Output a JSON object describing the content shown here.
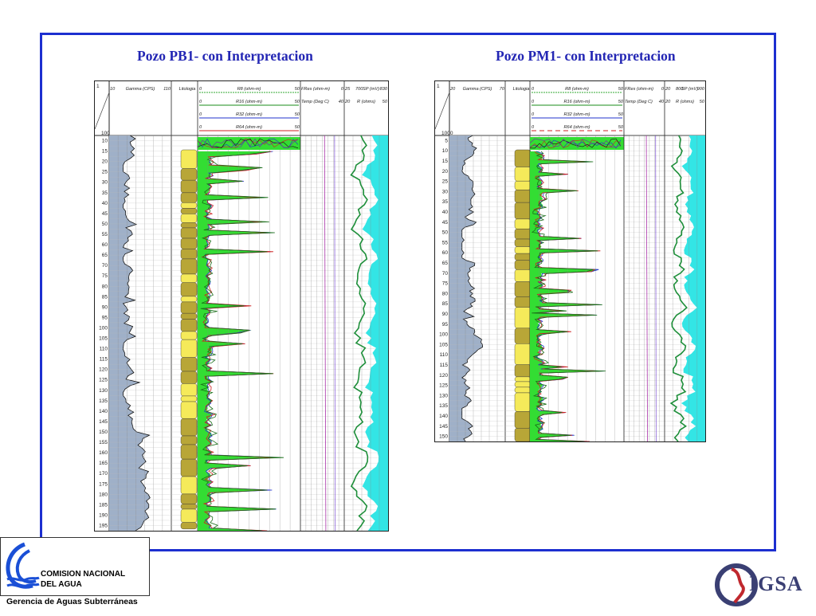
{
  "titles": {
    "left": "Pozo PB1- con Interpretacion",
    "right": "Pozo PM1- con Interpretacion"
  },
  "logs": {
    "left": {
      "header": {
        "gamma_label": "Gamma (CPS)",
        "gamma_min": "10",
        "gamma_max": "110",
        "litologia": "Litologia",
        "tracks": [
          {
            "label": "R8 (ohm-m)",
            "min": "0",
            "max": "50"
          },
          {
            "label": "R16 (ohm-m)",
            "min": "0",
            "max": "50"
          },
          {
            "label": "R32 (ohm-m)",
            "min": "0",
            "max": "50"
          },
          {
            "label": "R64 (ohm-m)",
            "min": "0",
            "max": "50"
          }
        ],
        "fres_label": "FRes (ohm-m)",
        "fres_min": "0",
        "fres_max": "25",
        "temp_label": "Temp (Deg C)",
        "temp_min": "20",
        "temp_max": "40",
        "sp_label": "SP (mV)",
        "sp_min": "700",
        "sp_max": "830",
        "r_label": "R (ohms)",
        "r_min": "0",
        "r_max": "50",
        "scale_top": "1",
        "scale_bottom": "100"
      },
      "depths": [
        "10",
        "15",
        "20",
        "25",
        "30",
        "35",
        "40",
        "45",
        "50",
        "55",
        "60",
        "65",
        "70",
        "75",
        "80",
        "85",
        "90",
        "95",
        "100",
        "105",
        "110",
        "115",
        "120",
        "125",
        "130",
        "135",
        "140",
        "145",
        "150",
        "155",
        "160",
        "165",
        "170",
        "175",
        "180",
        "185",
        "190",
        "195"
      ]
    },
    "right": {
      "header": {
        "gamma_label": "Gamma (CPS)",
        "gamma_min": "20",
        "gamma_max": "70",
        "litologia": "Litologia",
        "tracks": [
          {
            "label": "R8 (ohm-m)",
            "min": "0",
            "max": "50"
          },
          {
            "label": "R16 (ohm-m)",
            "min": "0",
            "max": "50"
          },
          {
            "label": "R32 (ohm-m)",
            "min": "0",
            "max": "50"
          },
          {
            "label": "R64 (ohm-m)",
            "min": "0",
            "max": "50"
          }
        ],
        "fres_label": "FRes (ohm-m)",
        "fres_min": "0",
        "fres_max": "20",
        "temp_label": "Temp (Deg C)",
        "temp_min": "20",
        "temp_max": "40",
        "sp_label": "SP (mV)",
        "sp_min": "800",
        "sp_max": "900",
        "r_label": "R (ohms)",
        "r_min": "0",
        "r_max": "50",
        "scale_top": "1",
        "scale_bottom": "1000"
      },
      "depths": [
        "5",
        "10",
        "15",
        "20",
        "25",
        "30",
        "35",
        "40",
        "45",
        "50",
        "55",
        "60",
        "65",
        "70",
        "75",
        "80",
        "85",
        "90",
        "95",
        "100",
        "105",
        "110",
        "115",
        "120",
        "125",
        "130",
        "135",
        "140",
        "145",
        "150"
      ]
    }
  },
  "footer": {
    "org_line1": "COMISION NACIONAL",
    "org_line2": "DEL  AGUA",
    "subtitle": "Gerencia de Aguas Subterráneas",
    "igsa": "IGSA"
  },
  "colors": {
    "frame": "#1c2fd0",
    "title": "#2326b4",
    "gamma_fill": "#9fb0c8",
    "resistivity_fill": "#33dd33",
    "lithology_clay": "#b8a637",
    "lithology_sand": "#f5ea5a",
    "sp_fill": "#33e5e5",
    "sp_curve": "#1e8f3a"
  }
}
